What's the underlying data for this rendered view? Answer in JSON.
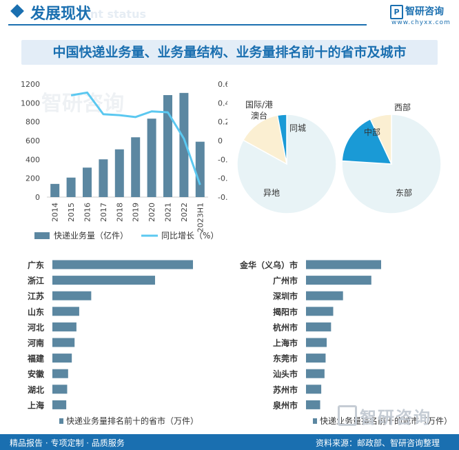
{
  "header": {
    "title": "发展现状",
    "subtitle_en": "ent status",
    "brand_name": "智研咨询",
    "brand_url": "www.chyxx.com"
  },
  "banner": {
    "title": "中国快递业务量、业务量结构、业务量排名前十的省市及城市"
  },
  "footer": {
    "left": "精品报告 · 专项定制 · 品质服务",
    "right": "资料来源：邮政部、智研咨询整理"
  },
  "watermark": {
    "text": "智研咨询"
  },
  "colors": {
    "bar": "#5b87a1",
    "line": "#5bc8f0",
    "brand": "#1a6fb0",
    "pie_domestic_other": "#e8f3f6",
    "pie_same_city": "#fbefd2",
    "pie_intl": "#1a9ad6",
    "pie_east": "#e8f3f6",
    "pie_central": "#1a9ad6",
    "pie_west": "#fbefd2"
  },
  "chart_data": [
    {
      "type": "bar",
      "categories": [
        "2014",
        "2015",
        "2016",
        "2017",
        "2018",
        "2019",
        "2020",
        "2021",
        "2022",
        "2023H1"
      ],
      "series": [
        {
          "name": "快递业务量（亿件）",
          "type": "bar",
          "axis": "left",
          "values": [
            140,
            207,
            313,
            401,
            507,
            635,
            833,
            1083,
            1106,
            588
          ]
        },
        {
          "name": "同比增长（%）",
          "type": "line",
          "axis": "right",
          "values": [
            null,
            0.48,
            0.51,
            0.28,
            0.27,
            0.25,
            0.31,
            0.3,
            0.02,
            -0.47
          ]
        }
      ],
      "yticks_left": [
        0,
        200,
        400,
        600,
        800,
        1000,
        1200
      ],
      "yticks_right": [
        "-0.6",
        "-0.4",
        "-0.2",
        "0",
        "0.2",
        "0.4",
        "0.6"
      ],
      "ylim_left": [
        0,
        1200
      ],
      "ylim_right": [
        -0.6,
        0.6
      ],
      "legend_position": "bottom"
    },
    {
      "type": "pie",
      "slices": [
        {
          "label": "异地",
          "value": 0.83
        },
        {
          "label": "同城",
          "value": 0.14
        },
        {
          "label": "国际/港澳台",
          "value": 0.03
        }
      ]
    },
    {
      "type": "pie",
      "slices": [
        {
          "label": "东部",
          "value": 0.76
        },
        {
          "label": "中部",
          "value": 0.17
        },
        {
          "label": "西部",
          "value": 0.07
        }
      ]
    },
    {
      "type": "bar",
      "orientation": "horizontal",
      "categories": [
        "广东",
        "浙江",
        "江苏",
        "山东",
        "河北",
        "河南",
        "福建",
        "安徽",
        "湖北",
        "上海"
      ],
      "values": [
        152,
        111,
        42,
        29,
        26,
        24,
        21,
        17,
        16,
        15
      ],
      "legend": "快递业务量排名前十的省市（万件）",
      "legend_position": "bottom"
    },
    {
      "type": "bar",
      "orientation": "horizontal",
      "categories": [
        "金华（义乌）市",
        "广州市",
        "深圳市",
        "揭阳市",
        "杭州市",
        "上海市",
        "东莞市",
        "汕头市",
        "苏州市",
        "泉州市"
      ],
      "values": [
        69,
        60,
        34,
        25,
        23,
        19,
        18,
        17,
        14,
        13
      ],
      "legend": "快递业务量排名前十的城市（万件）",
      "legend_position": "bottom"
    }
  ]
}
